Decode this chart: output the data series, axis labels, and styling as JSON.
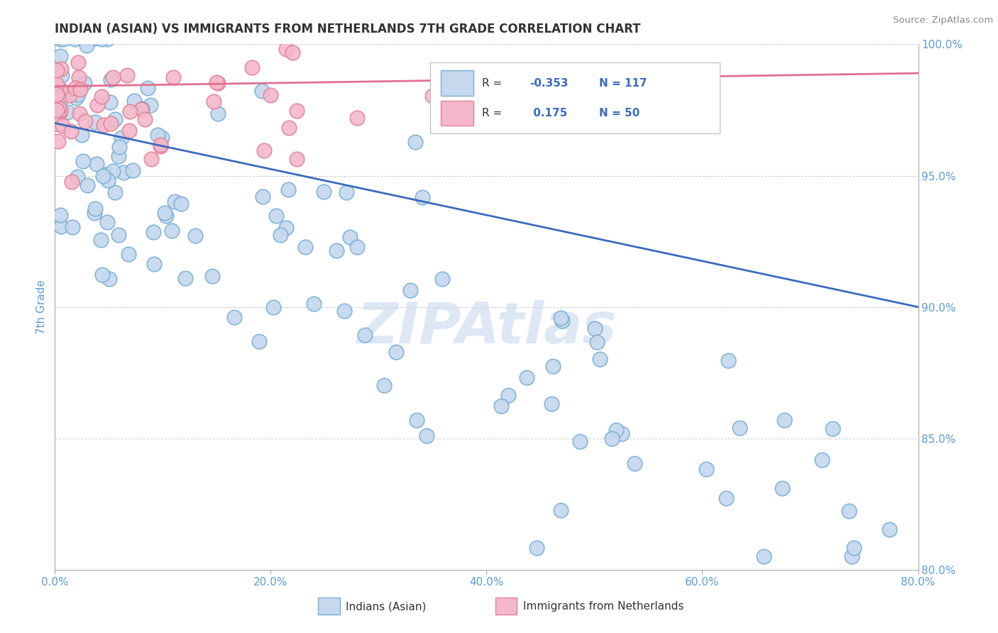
{
  "title": "INDIAN (ASIAN) VS IMMIGRANTS FROM NETHERLANDS 7TH GRADE CORRELATION CHART",
  "source_text": "Source: ZipAtlas.com",
  "ylabel": "7th Grade",
  "watermark": "ZIPAtlas",
  "x_min": 0.0,
  "x_max": 80.0,
  "y_min": 80.0,
  "y_max": 100.0,
  "blue_r": -0.353,
  "blue_n": 117,
  "pink_r": 0.175,
  "pink_n": 50,
  "blue_color": "#c5d8ee",
  "blue_edge": "#7bafd4",
  "pink_color": "#f4b8ca",
  "pink_edge": "#e0849a",
  "blue_line_color": "#3a6bbf",
  "pink_line_color": "#e07090",
  "title_color": "#333333",
  "axis_label_color": "#5b9bd5",
  "tick_label_color": "#5b9bd5",
  "grid_color": "#cccccc",
  "watermark_color": "#c8d8ee",
  "blue_line_y0": 97.0,
  "blue_line_y1": 90.0,
  "pink_line_y0": 98.4,
  "pink_line_y1": 98.9,
  "x_ticks": [
    0,
    20,
    40,
    60,
    80
  ],
  "y_ticks": [
    80.0,
    85.0,
    90.0,
    95.0,
    100.0
  ]
}
